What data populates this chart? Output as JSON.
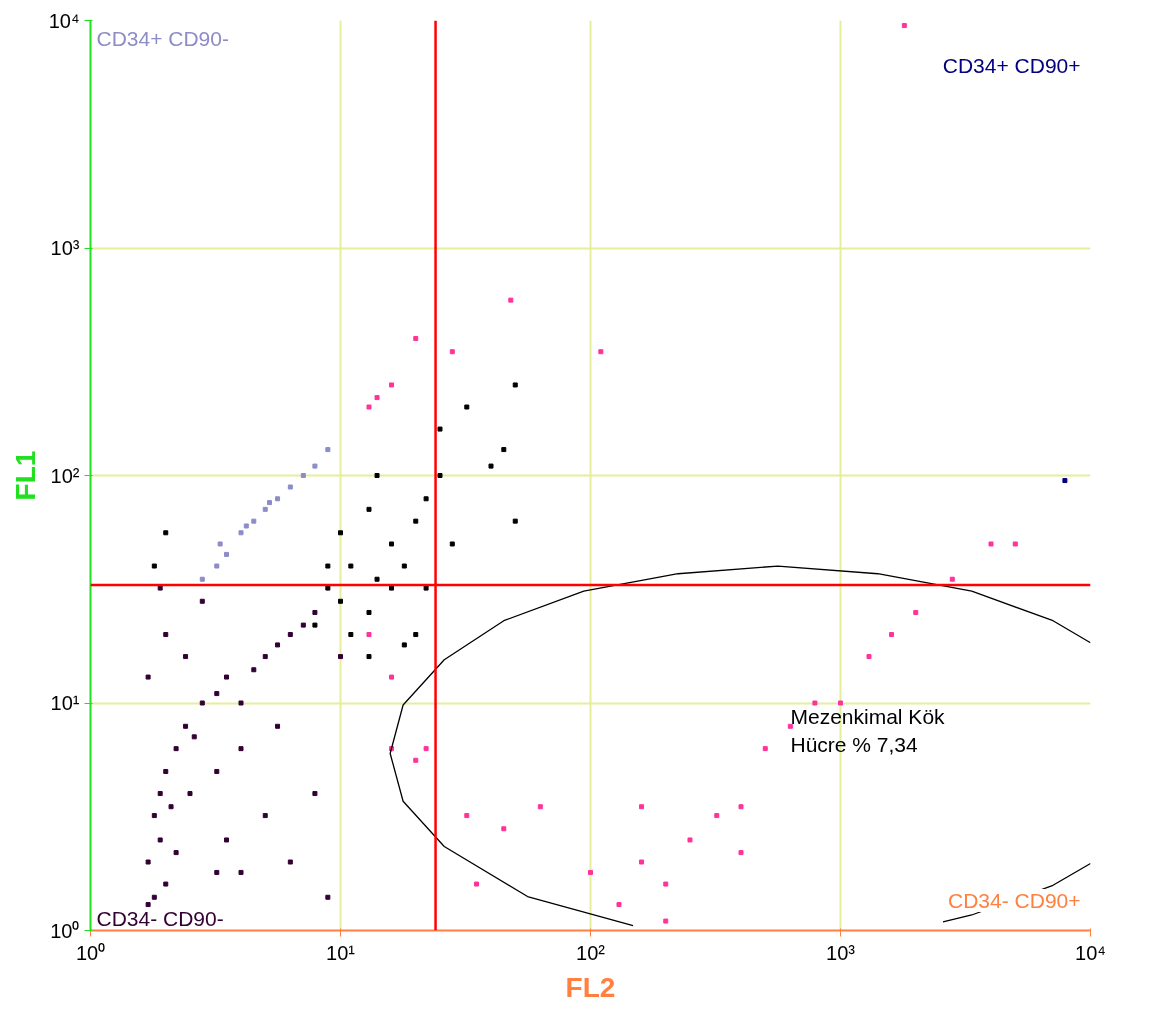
{
  "chart_data": {
    "type": "scatter",
    "xlabel": "FL2",
    "ylabel": "FL1",
    "log": "xy",
    "marker": "square",
    "grid": true,
    "xlim": [
      1,
      10000
    ],
    "ylim": [
      1,
      10000
    ],
    "xticks": [
      {
        "value": 1,
        "label": "10⁰"
      },
      {
        "value": 10,
        "label": "10¹"
      },
      {
        "value": 100,
        "label": "10²"
      },
      {
        "value": 1000,
        "label": "10³"
      },
      {
        "value": 10000,
        "label": "10⁴"
      }
    ],
    "yticks": [
      {
        "value": 1,
        "label": "10⁰"
      },
      {
        "value": 10,
        "label": "10¹"
      },
      {
        "value": 100,
        "label": "10²"
      },
      {
        "value": 1000,
        "label": "10³"
      },
      {
        "value": 10000,
        "label": "10⁴"
      }
    ],
    "ref_lines": [
      {
        "axis": "x",
        "value": 24,
        "label": null,
        "color": "#ff0000"
      },
      {
        "axis": "y",
        "value": 33,
        "label": null,
        "color": "#ff0000"
      }
    ],
    "annotations": [
      "CD34+ CD90-",
      "CD34+ CD90+",
      "CD34- CD90+",
      "CD34- CD90-",
      "Mezenkimal Kök\nHücre % 7,34"
    ],
    "series": [
      {
        "color": "#330033",
        "x": [
          1.7,
          1.8,
          1.7,
          1.9,
          1.8,
          1.9,
          2.0,
          2.1,
          2.2,
          2.4,
          2.6,
          2.8,
          3.2,
          3.5,
          4.0,
          4.5,
          5.0,
          5.6,
          6.3,
          7.1,
          7.9,
          2.0,
          2.2,
          2.5,
          3.2,
          4.0,
          1.7,
          2.0,
          2.8,
          3.5,
          5.0,
          7.9,
          8.9,
          4.0,
          6.3,
          1.9,
          2.4,
          10,
          5.6,
          3.2
        ],
        "values": [
          1.3,
          1.4,
          2.0,
          2.5,
          3.2,
          4.0,
          5.0,
          3.5,
          6.3,
          7.9,
          7.1,
          10,
          11,
          13,
          10,
          14,
          16,
          18,
          20,
          22,
          25,
          1.6,
          2.2,
          4.0,
          5.0,
          6.3,
          13,
          20,
          28,
          2.5,
          3.2,
          4.0,
          1.4,
          1.8,
          2.0,
          32,
          16,
          16,
          7.9,
          1.8
        ]
      },
      {
        "color": "#000000",
        "x": [
          8.9,
          10,
          11,
          13,
          14,
          16,
          18,
          20,
          22,
          7.9,
          10,
          13,
          16,
          20,
          25,
          28,
          32,
          40,
          45,
          50,
          50,
          2.0,
          1.8,
          11,
          14,
          18,
          22,
          25,
          8.9,
          13
        ],
        "values": [
          32,
          28,
          40,
          25,
          35,
          50,
          40,
          63,
          79,
          22,
          56,
          71,
          32,
          20,
          100,
          50,
          200,
          110,
          130,
          250,
          63,
          56,
          40,
          20,
          100,
          18,
          32,
          160,
          40,
          16
        ]
      },
      {
        "color": "#8c8cc8",
        "x": [
          2.8,
          3.2,
          3.5,
          4.0,
          4.5,
          5.0,
          5.6,
          6.3,
          7.1,
          7.9,
          8.9,
          3.3,
          4.2,
          5.2
        ],
        "values": [
          35,
          40,
          45,
          56,
          63,
          71,
          79,
          89,
          100,
          110,
          130,
          50,
          60,
          76
        ]
      },
      {
        "color": "#ff3399",
        "x": [
          13,
          14,
          16,
          20,
          28,
          48,
          110,
          1800,
          13,
          16,
          32,
          63,
          100,
          160,
          200,
          250,
          320,
          400,
          500,
          630,
          790,
          1000,
          1300,
          1600,
          2000,
          2800,
          4000,
          5000,
          200,
          16,
          20,
          35,
          45,
          22,
          130,
          400,
          160
        ],
        "values": [
          200,
          220,
          250,
          400,
          350,
          590,
          350,
          9500,
          20,
          13,
          3.2,
          3.5,
          1.8,
          2.0,
          1.6,
          2.5,
          3.2,
          3.5,
          6.3,
          7.9,
          10,
          10,
          16,
          20,
          25,
          35,
          50,
          50,
          1.1,
          6.3,
          5.6,
          1.6,
          2.8,
          6.3,
          1.3,
          2.2,
          3.5
        ]
      },
      {
        "color": "#000080",
        "x": [
          7900
        ],
        "values": [
          95
        ]
      },
      {
        "type": "line",
        "marker": "none",
        "color": "#000000",
        "x": [
          148,
          56,
          26,
          17.8,
          15.8,
          17.8,
          26,
          45,
          94,
          224,
          562,
          1410,
          3350,
          7080,
          10000,
          null,
          10000,
          7080,
          3350,
          2570
        ],
        "values": [
          1.05,
          1.41,
          2.34,
          3.7,
          6.0,
          9.8,
          15.5,
          23,
          31,
          37,
          40,
          37,
          31,
          23,
          18.4,
          null,
          1.97,
          1.58,
          1.17,
          1.09
        ]
      }
    ]
  }
}
